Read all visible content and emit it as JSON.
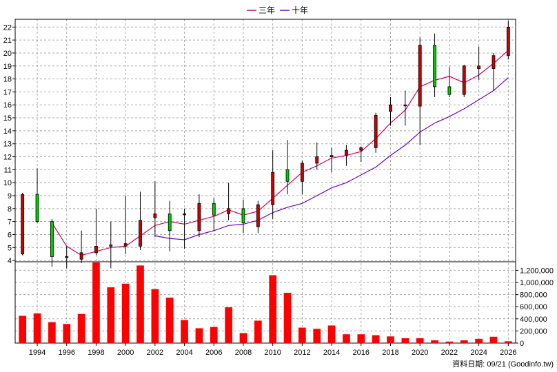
{
  "chart_data": {
    "type": "candlestick",
    "legend": [
      {
        "name": "三年",
        "color": "#cc0066"
      },
      {
        "name": "十年",
        "color": "#6600cc"
      }
    ],
    "legend_position": "top-center",
    "grid": true,
    "up_color": "#cc0000",
    "down_color": "#00cc00",
    "volume_color": "#ff0000",
    "x_tick_labels": [
      "1994",
      "1996",
      "1998",
      "2000",
      "2002",
      "2004",
      "2006",
      "2008",
      "2010",
      "2012",
      "2014",
      "2016",
      "2018",
      "2020",
      "2022",
      "2024",
      "2026"
    ],
    "price_axis": {
      "ylim": [
        3.9,
        22.6
      ],
      "ticks": [
        4,
        5,
        6,
        7,
        8,
        9,
        10,
        11,
        12,
        13,
        14,
        15,
        16,
        17,
        18,
        19,
        20,
        21,
        22
      ]
    },
    "volume_axis": {
      "ylim": [
        0,
        1330000
      ],
      "ticks": [
        0,
        200000,
        400000,
        600000,
        800000,
        1000000,
        1200000
      ],
      "tick_labels": [
        "0",
        "200,000",
        "400,000",
        "600,000",
        "800,000",
        "1,000,000",
        "1,200,000"
      ]
    },
    "candles": [
      {
        "year": 1993,
        "open": 4.5,
        "close": 9.1,
        "high": 9.2,
        "low": 4.4
      },
      {
        "year": 1994,
        "open": 9.1,
        "close": 7.0,
        "high": 11.1,
        "low": 6.9
      },
      {
        "year": 1995,
        "open": 7.0,
        "close": 4.3,
        "high": 7.2,
        "low": 3.5
      },
      {
        "year": 1996,
        "open": 4.3,
        "close": 4.3,
        "high": 5.1,
        "low": 3.4
      },
      {
        "year": 1997,
        "open": 4.1,
        "close": 4.6,
        "high": 6.3,
        "low": 3.8
      },
      {
        "year": 1998,
        "open": 4.6,
        "close": 5.1,
        "high": 8.0,
        "low": 4.4
      },
      {
        "year": 1999,
        "open": 5.1,
        "close": 5.2,
        "high": 7.0,
        "low": 3.4
      },
      {
        "year": 2000,
        "open": 5.1,
        "close": 5.3,
        "high": 9.0,
        "low": 4.5
      },
      {
        "year": 2001,
        "open": 5.1,
        "close": 7.1,
        "high": 9.3,
        "low": 4.8
      },
      {
        "year": 2002,
        "open": 7.3,
        "close": 7.6,
        "high": 10.1,
        "low": 5.8
      },
      {
        "year": 2003,
        "open": 7.6,
        "close": 6.3,
        "high": 8.6,
        "low": 4.7
      },
      {
        "year": 2004,
        "open": 7.6,
        "close": 7.6,
        "high": 8.0,
        "low": 4.9
      },
      {
        "year": 2005,
        "open": 6.3,
        "close": 8.4,
        "high": 9.1,
        "low": 5.8
      },
      {
        "year": 2006,
        "open": 8.4,
        "close": 7.5,
        "high": 8.8,
        "low": 6.3
      },
      {
        "year": 2007,
        "open": 7.6,
        "close": 8.0,
        "high": 10.0,
        "low": 7.1
      },
      {
        "year": 2008,
        "open": 8.0,
        "close": 6.9,
        "high": 8.7,
        "low": 6.1
      },
      {
        "year": 2009,
        "open": 6.6,
        "close": 8.3,
        "high": 8.6,
        "low": 6.1
      },
      {
        "year": 2010,
        "open": 8.3,
        "close": 10.8,
        "high": 12.5,
        "low": 7.2
      },
      {
        "year": 2011,
        "open": 11.0,
        "close": 10.1,
        "high": 13.3,
        "low": 9.1
      },
      {
        "year": 2012,
        "open": 10.1,
        "close": 11.5,
        "high": 11.7,
        "low": 9.1
      },
      {
        "year": 2013,
        "open": 11.5,
        "close": 12.0,
        "high": 13.1,
        "low": 11.0
      },
      {
        "year": 2014,
        "open": 12.0,
        "close": 12.1,
        "high": 12.7,
        "low": 10.8
      },
      {
        "year": 2015,
        "open": 12.1,
        "close": 12.5,
        "high": 12.9,
        "low": 11.3
      },
      {
        "year": 2016,
        "open": 12.5,
        "close": 12.7,
        "high": 12.8,
        "low": 11.6
      },
      {
        "year": 2017,
        "open": 12.7,
        "close": 15.2,
        "high": 15.4,
        "low": 12.3
      },
      {
        "year": 2018,
        "open": 15.5,
        "close": 16.0,
        "high": 16.6,
        "low": 14.4
      },
      {
        "year": 2019,
        "open": 16.0,
        "close": 16.0,
        "high": 17.1,
        "low": 14.4
      },
      {
        "year": 2020,
        "open": 15.9,
        "close": 20.6,
        "high": 21.2,
        "low": 12.9
      },
      {
        "year": 2021,
        "open": 20.6,
        "close": 17.4,
        "high": 21.5,
        "low": 16.6
      },
      {
        "year": 2022,
        "open": 17.4,
        "close": 16.8,
        "high": 18.9,
        "low": 16.6
      },
      {
        "year": 2023,
        "open": 16.8,
        "close": 19.0,
        "high": 19.1,
        "low": 16.6
      },
      {
        "year": 2024,
        "open": 18.8,
        "close": 19.0,
        "high": 20.5,
        "low": 17.9
      },
      {
        "year": 2025,
        "open": 18.8,
        "close": 19.8,
        "high": 20.0,
        "low": 17.1
      },
      {
        "year": 2026,
        "open": 19.8,
        "close": 22.0,
        "high": 22.5,
        "low": 19.5
      }
    ],
    "ma_3y": [
      {
        "year": 1995,
        "value": 6.9
      },
      {
        "year": 1996,
        "value": 5.1
      },
      {
        "year": 1997,
        "value": 4.4
      },
      {
        "year": 1998,
        "value": 4.7
      },
      {
        "year": 1999,
        "value": 5.0
      },
      {
        "year": 2000,
        "value": 5.1
      },
      {
        "year": 2001,
        "value": 5.9
      },
      {
        "year": 2002,
        "value": 6.7
      },
      {
        "year": 2003,
        "value": 7.0
      },
      {
        "year": 2004,
        "value": 6.8
      },
      {
        "year": 2005,
        "value": 7.1
      },
      {
        "year": 2006,
        "value": 7.4
      },
      {
        "year": 2007,
        "value": 7.9
      },
      {
        "year": 2008,
        "value": 7.5
      },
      {
        "year": 2009,
        "value": 7.8
      },
      {
        "year": 2010,
        "value": 8.8
      },
      {
        "year": 2011,
        "value": 9.8
      },
      {
        "year": 2012,
        "value": 10.8
      },
      {
        "year": 2013,
        "value": 11.3
      },
      {
        "year": 2014,
        "value": 11.9
      },
      {
        "year": 2015,
        "value": 12.1
      },
      {
        "year": 2016,
        "value": 12.4
      },
      {
        "year": 2017,
        "value": 13.4
      },
      {
        "year": 2018,
        "value": 14.6
      },
      {
        "year": 2019,
        "value": 15.6
      },
      {
        "year": 2020,
        "value": 17.4
      },
      {
        "year": 2021,
        "value": 17.9
      },
      {
        "year": 2022,
        "value": 18.2
      },
      {
        "year": 2023,
        "value": 17.7
      },
      {
        "year": 2024,
        "value": 18.3
      },
      {
        "year": 2025,
        "value": 19.2
      },
      {
        "year": 2026,
        "value": 20.2
      }
    ],
    "ma_10y": [
      {
        "year": 2002,
        "value": 5.9
      },
      {
        "year": 2003,
        "value": 5.7
      },
      {
        "year": 2004,
        "value": 5.6
      },
      {
        "year": 2005,
        "value": 6.0
      },
      {
        "year": 2006,
        "value": 6.3
      },
      {
        "year": 2007,
        "value": 6.7
      },
      {
        "year": 2008,
        "value": 6.8
      },
      {
        "year": 2009,
        "value": 7.1
      },
      {
        "year": 2010,
        "value": 7.7
      },
      {
        "year": 2011,
        "value": 8.1
      },
      {
        "year": 2012,
        "value": 8.4
      },
      {
        "year": 2013,
        "value": 9.0
      },
      {
        "year": 2014,
        "value": 9.6
      },
      {
        "year": 2015,
        "value": 10.0
      },
      {
        "year": 2016,
        "value": 10.6
      },
      {
        "year": 2017,
        "value": 11.2
      },
      {
        "year": 2018,
        "value": 12.1
      },
      {
        "year": 2019,
        "value": 12.9
      },
      {
        "year": 2020,
        "value": 13.9
      },
      {
        "year": 2021,
        "value": 14.6
      },
      {
        "year": 2022,
        "value": 15.1
      },
      {
        "year": 2023,
        "value": 15.7
      },
      {
        "year": 2024,
        "value": 16.4
      },
      {
        "year": 2025,
        "value": 17.1
      },
      {
        "year": 2026,
        "value": 18.1
      }
    ],
    "volume": [
      {
        "year": 1993,
        "value": 450000
      },
      {
        "year": 1994,
        "value": 490000
      },
      {
        "year": 1995,
        "value": 345000
      },
      {
        "year": 1996,
        "value": 315000
      },
      {
        "year": 1997,
        "value": 480000
      },
      {
        "year": 1998,
        "value": 1330000
      },
      {
        "year": 1999,
        "value": 920000
      },
      {
        "year": 2000,
        "value": 980000
      },
      {
        "year": 2001,
        "value": 1280000
      },
      {
        "year": 2002,
        "value": 890000
      },
      {
        "year": 2003,
        "value": 750000
      },
      {
        "year": 2004,
        "value": 380000
      },
      {
        "year": 2005,
        "value": 245000
      },
      {
        "year": 2006,
        "value": 265000
      },
      {
        "year": 2007,
        "value": 590000
      },
      {
        "year": 2008,
        "value": 165000
      },
      {
        "year": 2009,
        "value": 370000
      },
      {
        "year": 2010,
        "value": 1120000
      },
      {
        "year": 2011,
        "value": 830000
      },
      {
        "year": 2012,
        "value": 255000
      },
      {
        "year": 2013,
        "value": 235000
      },
      {
        "year": 2014,
        "value": 290000
      },
      {
        "year": 2015,
        "value": 145000
      },
      {
        "year": 2016,
        "value": 145000
      },
      {
        "year": 2017,
        "value": 130000
      },
      {
        "year": 2018,
        "value": 110000
      },
      {
        "year": 2019,
        "value": 80000
      },
      {
        "year": 2020,
        "value": 80000
      },
      {
        "year": 2021,
        "value": 45000
      },
      {
        "year": 2022,
        "value": 25000
      },
      {
        "year": 2023,
        "value": 45000
      },
      {
        "year": 2024,
        "value": 70000
      },
      {
        "year": 2025,
        "value": 105000
      },
      {
        "year": 2026,
        "value": 30000
      }
    ]
  },
  "footer": {
    "source_text": "資料日期: 09/21  (Goodinfo.tw)"
  }
}
